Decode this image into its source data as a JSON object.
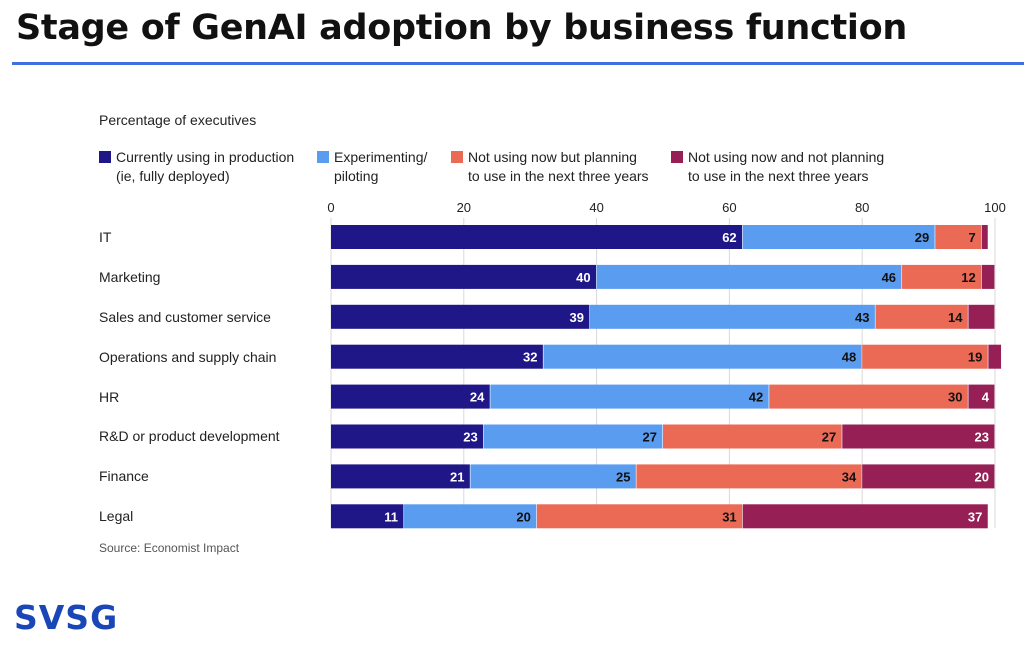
{
  "header": {
    "title": "Stage of GenAI adoption by business function"
  },
  "footer": {
    "source": "Source: Economist Impact",
    "logo_text": "SVSG"
  },
  "colors": {
    "title_rule": "#3f6fe0",
    "series": [
      "#1f1687",
      "#5a9cf0",
      "#ea6a55",
      "#962055"
    ],
    "logo": "#1a46b8"
  },
  "chart_data": {
    "type": "bar",
    "orientation": "horizontal",
    "stacked": true,
    "title": "Stage of GenAI adoption by business function",
    "subtitle": "Percentage of executives",
    "xlim": [
      0,
      100
    ],
    "xticks": [
      "0",
      "20",
      "40",
      "60",
      "80",
      "100"
    ],
    "categories": [
      "IT",
      "Marketing",
      "Sales and customer service",
      "Operations and supply chain",
      "HR",
      "R&D or product development",
      "Finance",
      "Legal"
    ],
    "series": [
      {
        "name": "Currently using in production (ie, fully deployed)",
        "line1": "Currently using in production",
        "line2": "(ie, fully deployed)",
        "label_color": "#ffffff",
        "values": [
          62,
          40,
          39,
          32,
          24,
          23,
          21,
          11
        ]
      },
      {
        "name": "Experimenting/ piloting",
        "line1": "Experimenting/",
        "line2": "piloting",
        "label_color": "#111111",
        "values": [
          29,
          46,
          43,
          48,
          42,
          27,
          25,
          20
        ]
      },
      {
        "name": "Not using now but planning to use in the next three years",
        "line1": "Not using now but planning",
        "line2": "to use in the next three years",
        "label_color": "#111111",
        "values": [
          7,
          12,
          14,
          19,
          30,
          27,
          34,
          31
        ]
      },
      {
        "name": "Not using now and not planning to use in the next three years",
        "line1": "Not using now and not planning",
        "line2": "to use in the next three years",
        "label_color": "#ffffff",
        "values": [
          1,
          2,
          4,
          2,
          4,
          23,
          20,
          37
        ]
      }
    ],
    "shown_labels": [
      [
        "62",
        "29",
        "7",
        null
      ],
      [
        "40",
        "46",
        "12",
        null
      ],
      [
        "39",
        "43",
        "14",
        null
      ],
      [
        "32",
        "48",
        "19",
        null
      ],
      [
        "24",
        "42",
        "30",
        "4"
      ],
      [
        "23",
        "27",
        "27",
        "23"
      ],
      [
        "21",
        "25",
        "34",
        "20"
      ],
      [
        "11",
        "20",
        "31",
        "37"
      ]
    ],
    "source": "Source: Economist Impact"
  }
}
